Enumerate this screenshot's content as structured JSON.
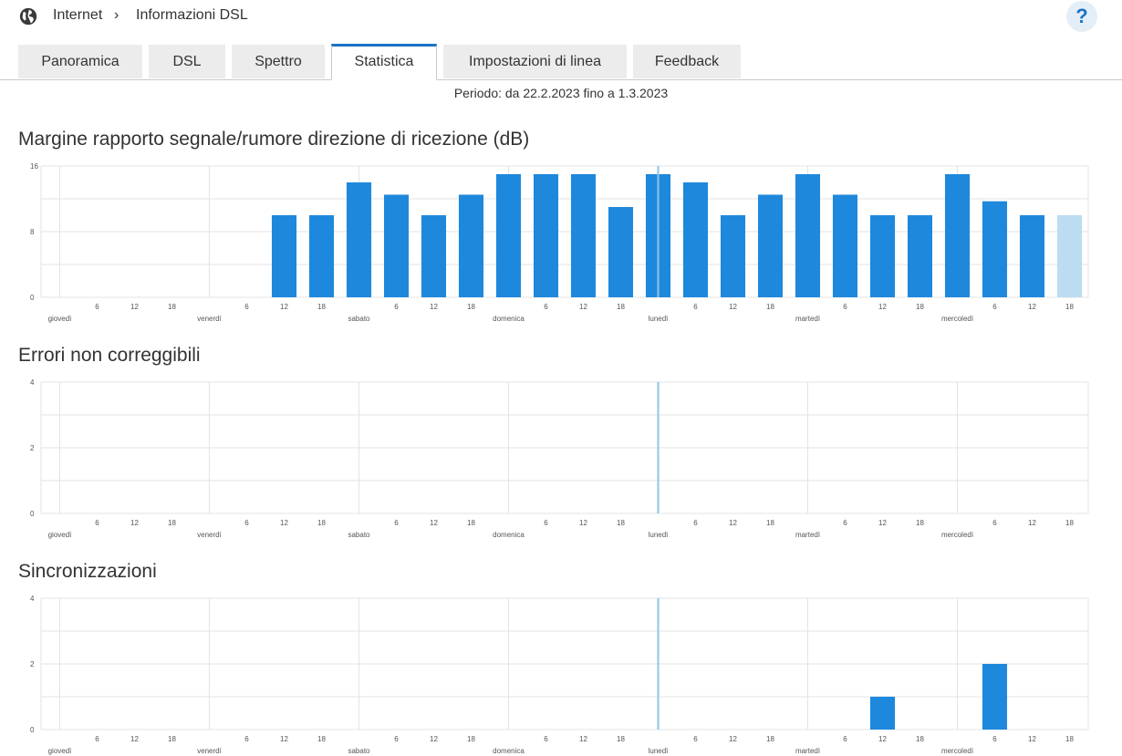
{
  "header": {
    "breadcrumb": [
      "Internet",
      "Informazioni DSL"
    ],
    "separator": "›",
    "help_label": "?"
  },
  "tabs": [
    {
      "label": "Panoramica",
      "active": false
    },
    {
      "label": "DSL",
      "active": false
    },
    {
      "label": "Spettro",
      "active": false
    },
    {
      "label": "Statistica",
      "active": true
    },
    {
      "label": "Impostazioni di linea",
      "active": false
    },
    {
      "label": "Feedback",
      "active": false
    }
  ],
  "period": "Periodo: da 22.2.2023 fino a 1.3.2023",
  "colors": {
    "bar": "#1e88dc",
    "bar_current": "#bcdcf2",
    "grid": "#e3e3e3",
    "marker": "#8ec5e6",
    "accent": "#1a73c7"
  },
  "x_axis": {
    "days": [
      "giovedì",
      "venerdì",
      "sabato",
      "domenica",
      "lunedì",
      "martedì",
      "mercoledì"
    ],
    "hour_ticks": [
      "6",
      "12",
      "18"
    ],
    "day_slot_index": [
      0,
      4,
      8,
      12,
      16,
      20,
      24
    ],
    "hour_slot_index": [
      1,
      2,
      3,
      5,
      6,
      7,
      9,
      10,
      11,
      13,
      14,
      15,
      17,
      18,
      19,
      21,
      22,
      23,
      25,
      26,
      27
    ],
    "slots": 28
  },
  "chart_data": [
    {
      "type": "bar",
      "title": "Margine rapporto segnale/rumore direzione di ricezione (dB)",
      "yticks": [
        0,
        8,
        16
      ],
      "ylim": [
        0,
        16
      ],
      "marker_slot": 16,
      "values": [
        null,
        null,
        null,
        null,
        null,
        null,
        10,
        10,
        14,
        12.5,
        10,
        12.5,
        15,
        15,
        15,
        11,
        15,
        14,
        10,
        12.5,
        15,
        12.5,
        10,
        10,
        15,
        11.7,
        10,
        10
      ],
      "current_slot": 27
    },
    {
      "type": "bar",
      "title": "Errori non correggibili",
      "yticks": [
        0,
        2,
        4
      ],
      "ylim": [
        0,
        4
      ],
      "marker_slot": 16,
      "values": [
        null,
        null,
        null,
        null,
        null,
        null,
        null,
        null,
        null,
        null,
        null,
        null,
        null,
        null,
        null,
        null,
        null,
        null,
        null,
        null,
        null,
        null,
        null,
        null,
        null,
        null,
        null,
        null
      ],
      "current_slot": null
    },
    {
      "type": "bar",
      "title": "Sincronizzazioni",
      "yticks": [
        0,
        2,
        4
      ],
      "ylim": [
        0,
        4
      ],
      "marker_slot": 16,
      "values": [
        null,
        null,
        null,
        null,
        null,
        null,
        null,
        null,
        null,
        null,
        null,
        null,
        null,
        null,
        null,
        null,
        null,
        null,
        null,
        null,
        null,
        null,
        1,
        null,
        null,
        2,
        null,
        null
      ],
      "current_slot": null
    }
  ]
}
